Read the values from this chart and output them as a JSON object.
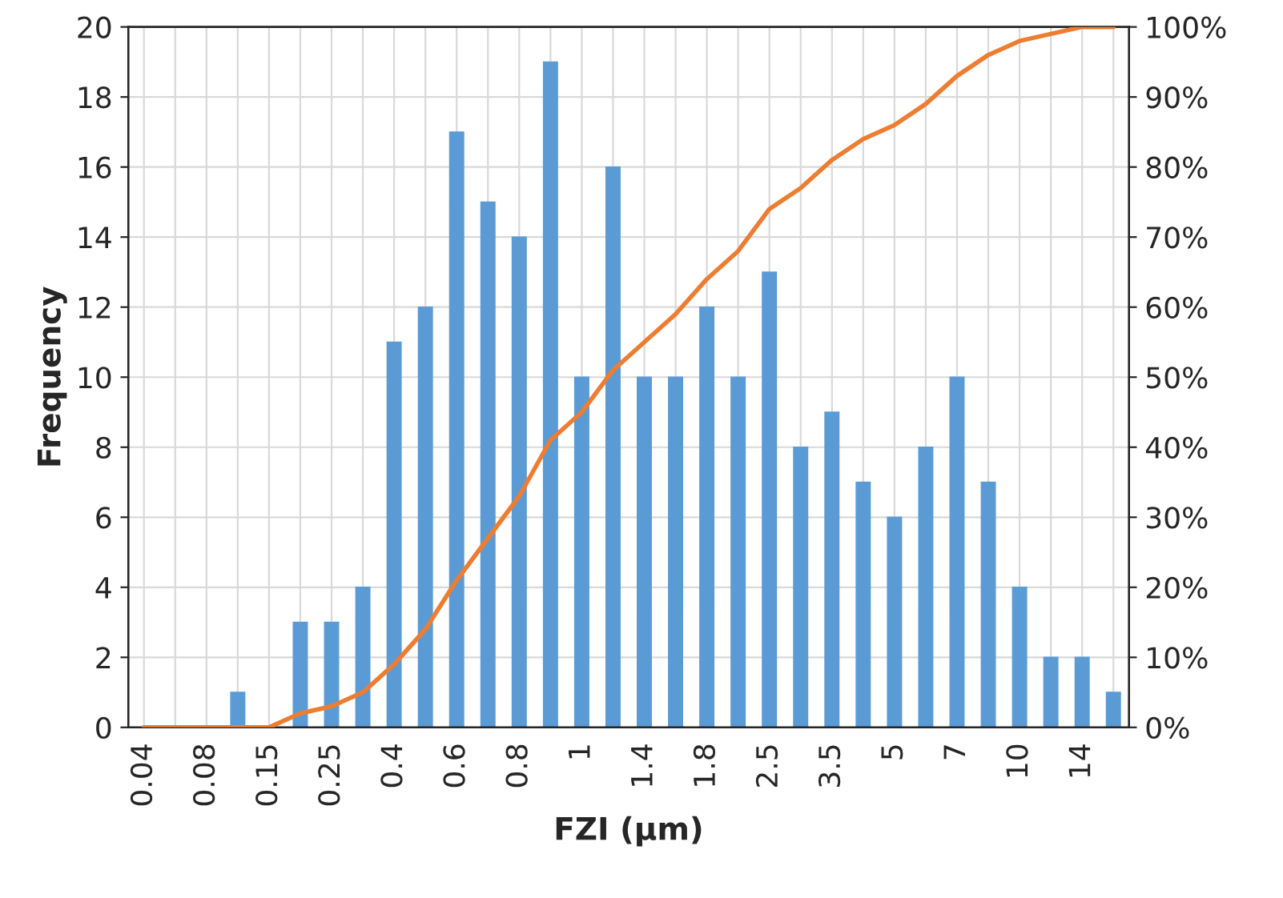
{
  "chart_data": {
    "type": "bar",
    "xlabel": "FZI (µm)",
    "ylabel": "Frequency",
    "categories": [
      "0.04",
      null,
      "0.08",
      null,
      "0.15",
      null,
      "0.25",
      null,
      "0.4",
      null,
      "0.6",
      null,
      "0.8",
      null,
      "1",
      null,
      "1.4",
      null,
      "1.8",
      null,
      "2.5",
      null,
      "3.5",
      null,
      "5",
      null,
      "7",
      null,
      "10",
      null,
      "14",
      null
    ],
    "series": [
      {
        "color": "#5b9bd5",
        "values": [
          0,
          0,
          0,
          1,
          0,
          3,
          3,
          4,
          11,
          12,
          17,
          15,
          14,
          19,
          10,
          16,
          10,
          10,
          12,
          10,
          13,
          8,
          9,
          7,
          6,
          8,
          10,
          7,
          4,
          2,
          2,
          1
        ]
      },
      {
        "type": "line",
        "axis": "y2",
        "color": "#ed7d31",
        "values": [
          0,
          0,
          0,
          0,
          0,
          2,
          3,
          5,
          9,
          14,
          21,
          27,
          33,
          41,
          45,
          51,
          55,
          59,
          64,
          68,
          74,
          77,
          81,
          84,
          86,
          89,
          93,
          96,
          98,
          99,
          100,
          100
        ]
      }
    ],
    "ylim": [
      0,
      20
    ],
    "yticks": [
      0,
      2,
      4,
      6,
      8,
      10,
      12,
      14,
      16,
      18,
      20
    ],
    "y2lim": [
      0,
      100
    ],
    "y2ticks": [
      {
        "value": 0,
        "label": "0%"
      },
      {
        "value": 10,
        "label": "10%"
      },
      {
        "value": 20,
        "label": "20%"
      },
      {
        "value": 30,
        "label": "30%"
      },
      {
        "value": 40,
        "label": "40%"
      },
      {
        "value": 50,
        "label": "50%"
      },
      {
        "value": 60,
        "label": "60%"
      },
      {
        "value": 70,
        "label": "70%"
      },
      {
        "value": 80,
        "label": "80%"
      },
      {
        "value": 90,
        "label": "90%"
      },
      {
        "value": 100,
        "label": "100%"
      }
    ],
    "grid": true,
    "legend": false,
    "marker": "none",
    "line_style": "solid"
  }
}
